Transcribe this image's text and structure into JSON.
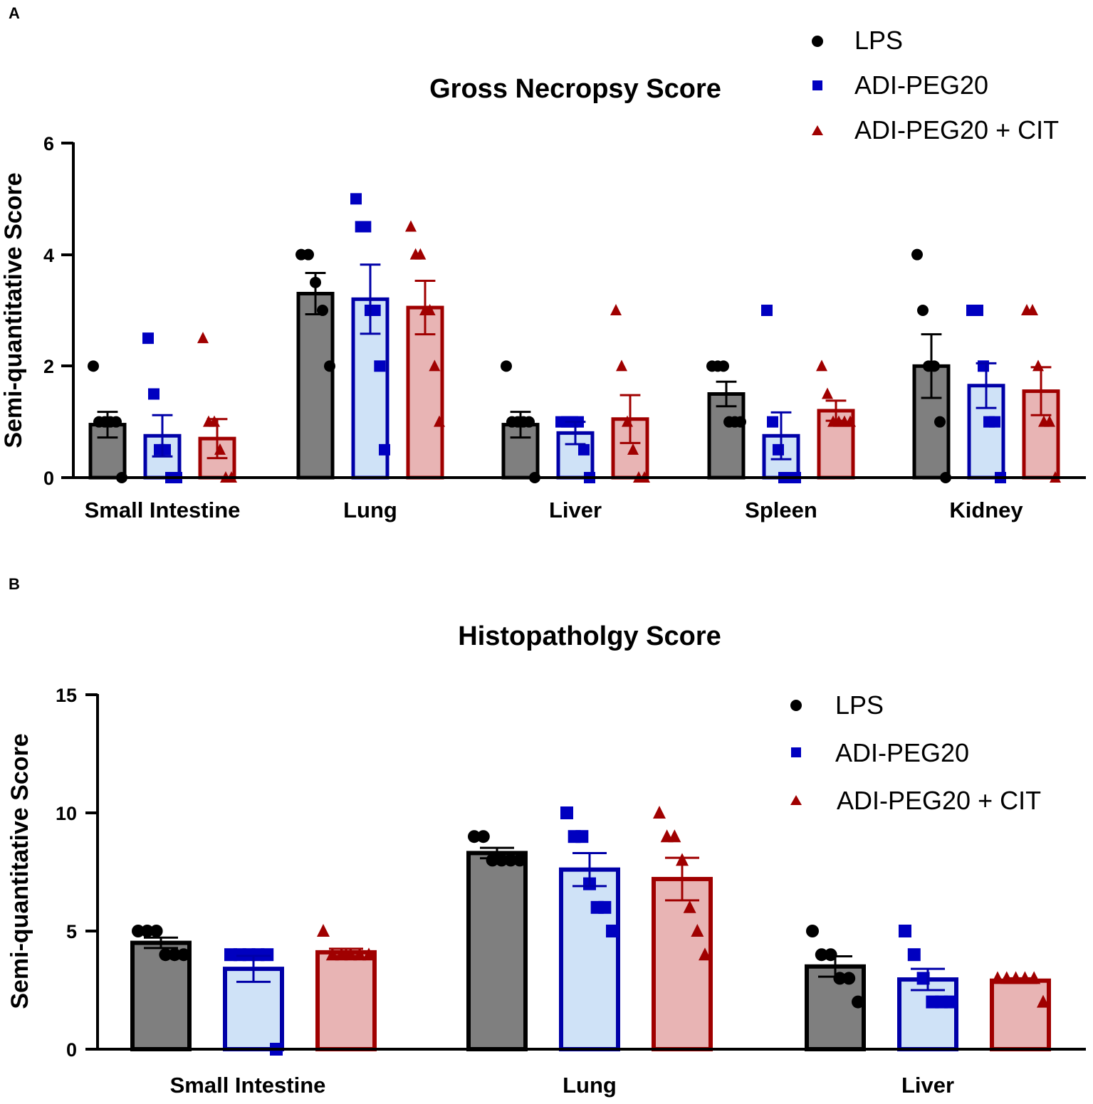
{
  "colors": {
    "LPS": {
      "marker": "#000000",
      "fill": "#7f7f7f",
      "stroke": "#000000"
    },
    "ADI-PEG20": {
      "marker": "#0000c0",
      "fill": "#cfe2f7",
      "stroke": "#0000a8"
    },
    "ADI-PEG20 + CIT": {
      "marker": "#a00000",
      "fill": "#e8b4b4",
      "stroke": "#a00000"
    }
  },
  "chart_data": [
    {
      "panel": "A",
      "type": "bar",
      "title": "Gross Necropsy Score",
      "xlabel": "",
      "ylabel": "Semi-quantitative Score",
      "ylim": [
        0,
        6
      ],
      "yticks": [
        0,
        2,
        4,
        6
      ],
      "legend_position": "top-right",
      "categories": [
        "Small Intestine",
        "Lung",
        "Liver",
        "Spleen",
        "Kidney"
      ],
      "series": [
        {
          "name": "LPS",
          "marker": "circle",
          "values": [
            0.95,
            3.3,
            0.95,
            1.5,
            2.0
          ],
          "sem": [
            0.23,
            0.37,
            0.23,
            0.22,
            0.57
          ],
          "points": [
            [
              2,
              1,
              1,
              1,
              1,
              0
            ],
            [
              4,
              4,
              3.5,
              3,
              2
            ],
            [
              2,
              1,
              1,
              1,
              1,
              0
            ],
            [
              2,
              2,
              2,
              1,
              1,
              1
            ],
            [
              4,
              3,
              2,
              2,
              1,
              0
            ]
          ]
        },
        {
          "name": "ADI-PEG20",
          "marker": "square",
          "values": [
            0.75,
            3.2,
            0.8,
            0.75,
            1.65
          ],
          "sem": [
            0.37,
            0.62,
            0.2,
            0.42,
            0.4
          ],
          "points": [
            [
              2.5,
              1.5,
              0.5,
              0.5,
              0,
              0
            ],
            [
              5,
              4.5,
              4.5,
              3,
              3,
              2,
              0.5
            ],
            [
              1,
              1,
              1,
              1,
              0.5,
              0
            ],
            [
              3,
              1,
              0.5,
              0,
              0,
              0
            ],
            [
              3,
              3,
              2,
              1,
              1,
              0
            ]
          ]
        },
        {
          "name": "ADI-PEG20 + CIT",
          "marker": "triangle",
          "values": [
            0.7,
            3.05,
            1.05,
            1.2,
            1.55
          ],
          "sem": [
            0.35,
            0.48,
            0.43,
            0.18,
            0.43
          ],
          "points": [
            [
              2.5,
              1,
              1,
              0.5,
              0,
              0
            ],
            [
              4.5,
              4,
              4,
              3,
              3,
              2,
              1
            ],
            [
              3,
              2,
              1,
              0.5,
              0,
              0
            ],
            [
              2,
              1.5,
              1,
              1,
              1,
              1
            ],
            [
              3,
              3,
              2,
              1,
              1,
              0
            ]
          ]
        }
      ]
    },
    {
      "panel": "B",
      "type": "bar",
      "title": "Histopatholgy Score",
      "xlabel": "",
      "ylabel": "Semi-quantitative Score",
      "ylim": [
        0,
        15
      ],
      "yticks": [
        0,
        5,
        10,
        15
      ],
      "legend_position": "top-right",
      "categories": [
        "Small Intestine",
        "Lung",
        "Liver"
      ],
      "series": [
        {
          "name": "LPS",
          "marker": "circle",
          "values": [
            4.5,
            8.3,
            3.5
          ],
          "sem": [
            0.22,
            0.22,
            0.43
          ],
          "points": [
            [
              5,
              5,
              5,
              4,
              4,
              4
            ],
            [
              9,
              9,
              8,
              8,
              8,
              8
            ],
            [
              5,
              4,
              4,
              3,
              3,
              2
            ]
          ]
        },
        {
          "name": "ADI-PEG20",
          "marker": "square",
          "values": [
            3.4,
            7.6,
            2.95
          ],
          "sem": [
            0.55,
            0.7,
            0.45
          ],
          "points": [
            [
              4,
              4,
              4,
              4,
              4,
              0
            ],
            [
              10,
              9,
              9,
              7,
              6,
              6,
              5
            ],
            [
              5,
              4,
              3,
              2,
              2,
              2
            ]
          ]
        },
        {
          "name": "ADI-PEG20 + CIT",
          "marker": "triangle",
          "values": [
            4.1,
            7.2,
            2.9
          ],
          "sem": [
            0.15,
            0.9,
            0.1
          ],
          "points": [
            [
              5,
              4,
              4,
              4,
              4,
              4
            ],
            [
              10,
              9,
              9,
              8,
              6,
              5,
              4
            ],
            [
              3,
              3,
              3,
              3,
              3,
              2
            ]
          ]
        }
      ]
    }
  ]
}
